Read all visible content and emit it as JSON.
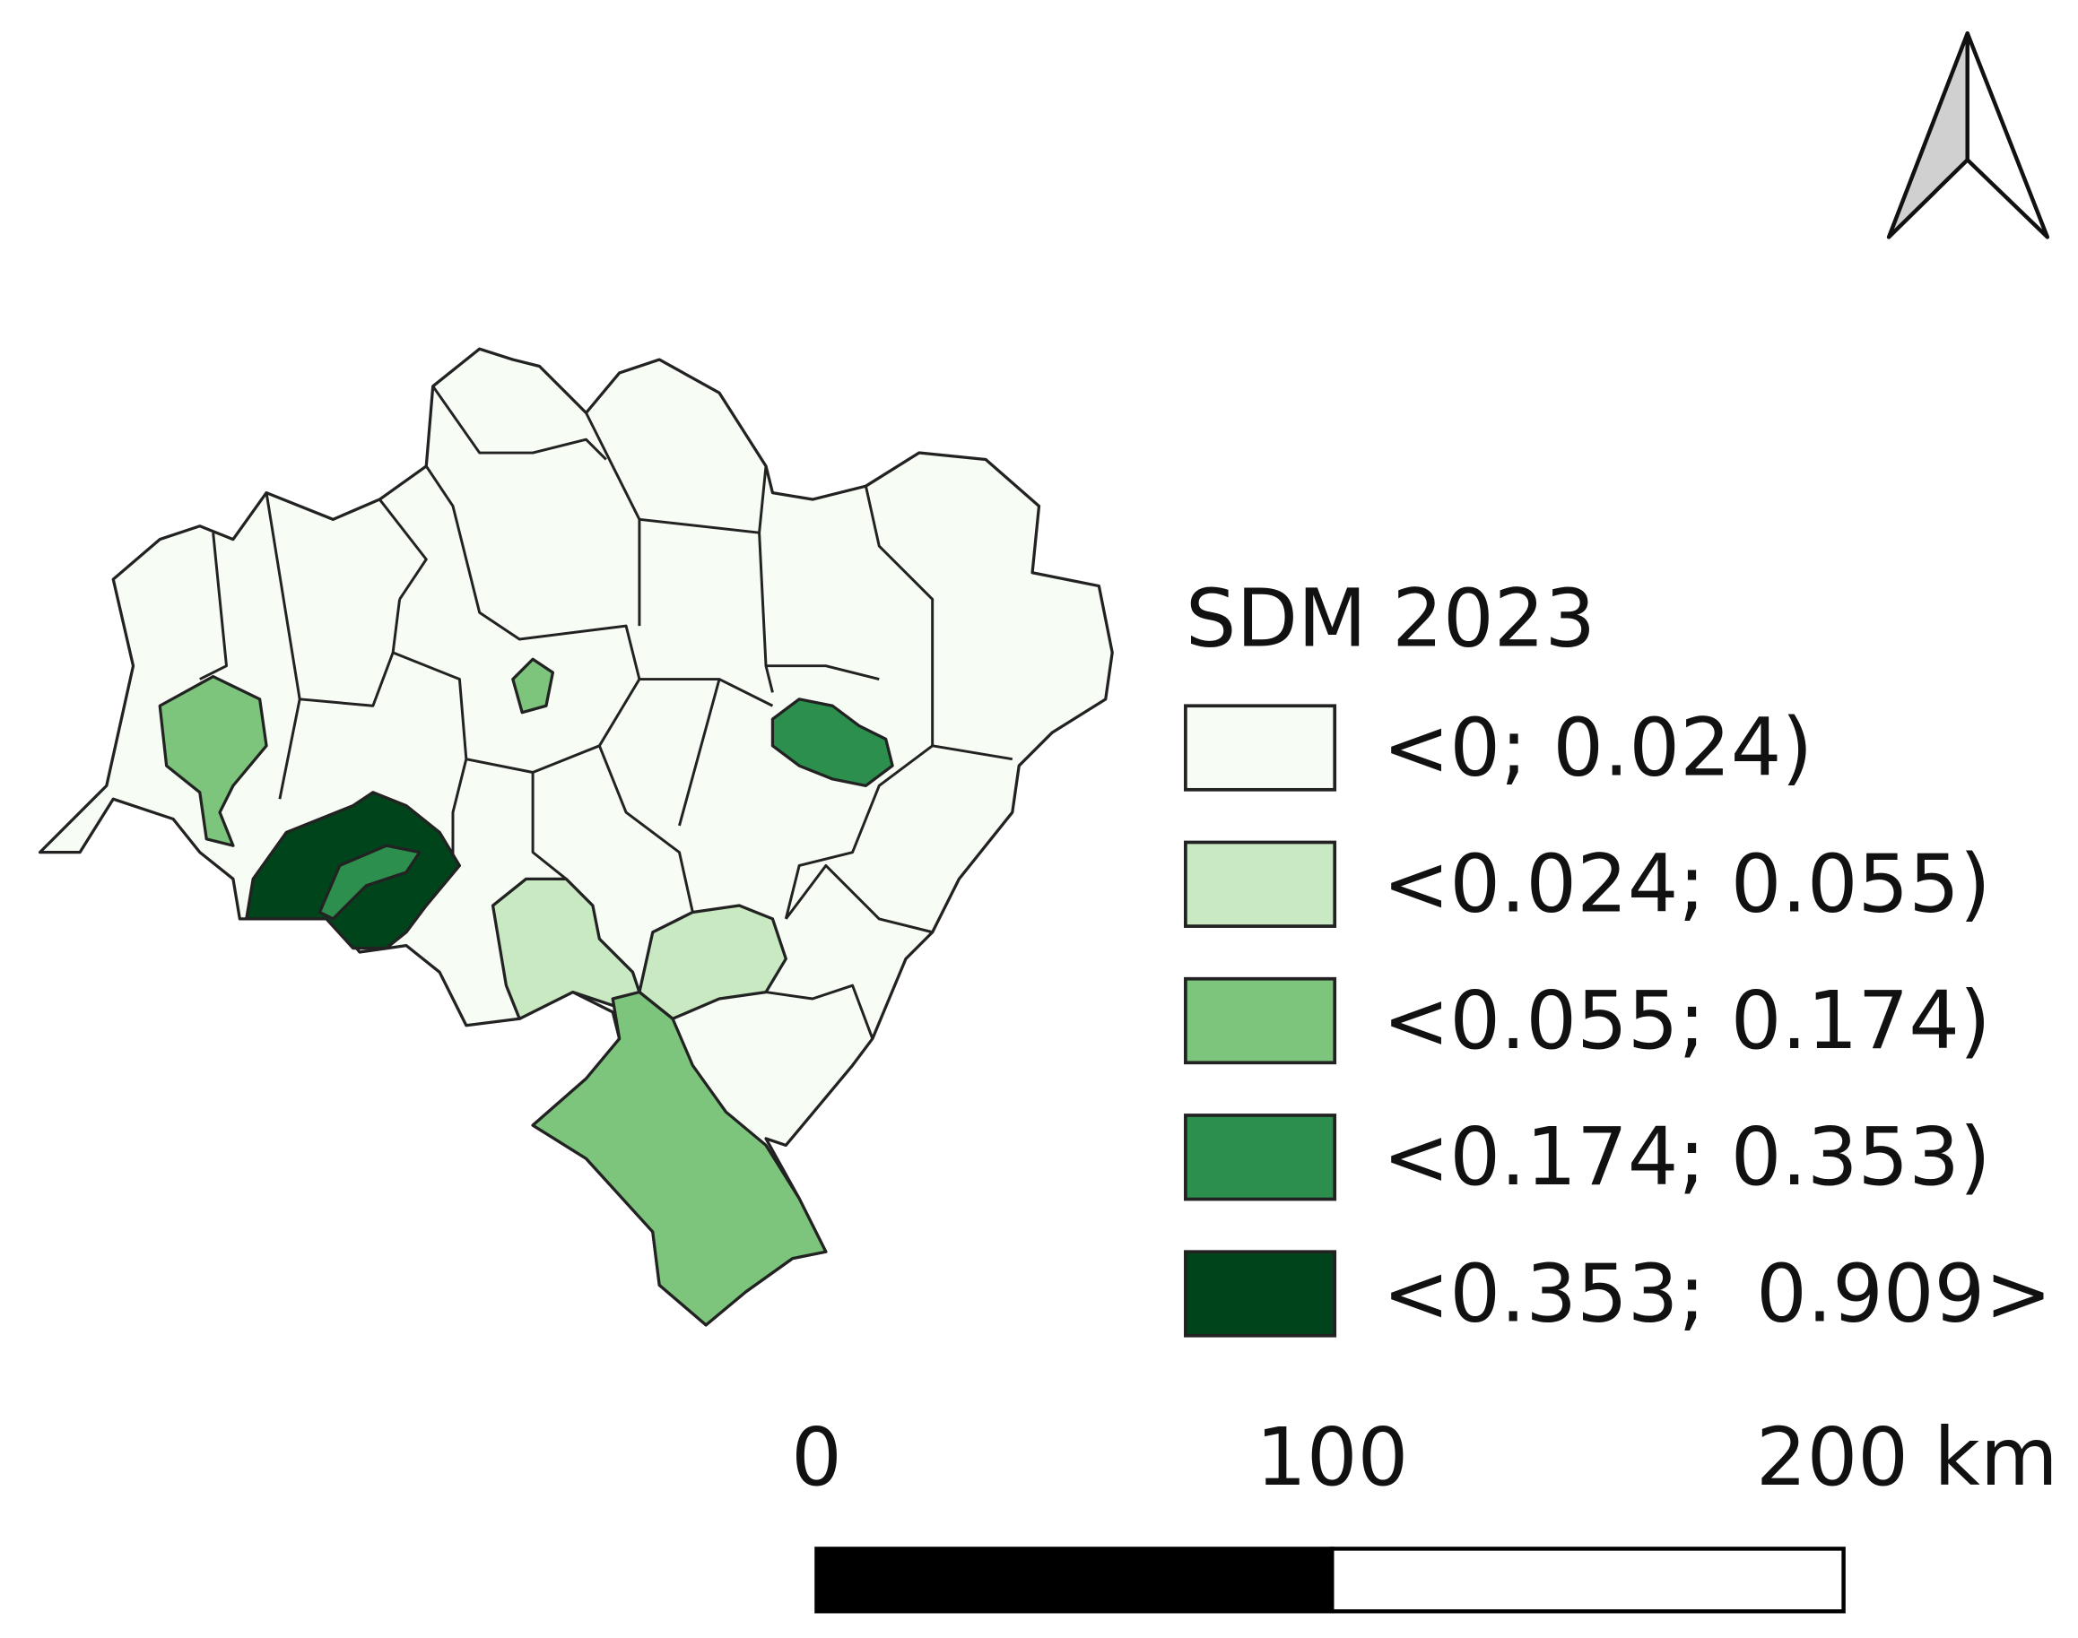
{
  "legend": {
    "title": "SDM 2023",
    "items": [
      {
        "label": "<0; 0.024)",
        "color": "#f7fcf5"
      },
      {
        "label": "<0.024; 0.055)",
        "color": "#c9e9c3"
      },
      {
        "label": "<0.055; 0.174)",
        "color": "#7dc57d"
      },
      {
        "label": "<0.174; 0.353)",
        "color": "#2c8f4d"
      },
      {
        "label": "<0.353;  0.909>",
        "color": "#00441b"
      }
    ]
  },
  "scale_bar": {
    "labels": [
      "0",
      "100",
      "200 km"
    ]
  }
}
